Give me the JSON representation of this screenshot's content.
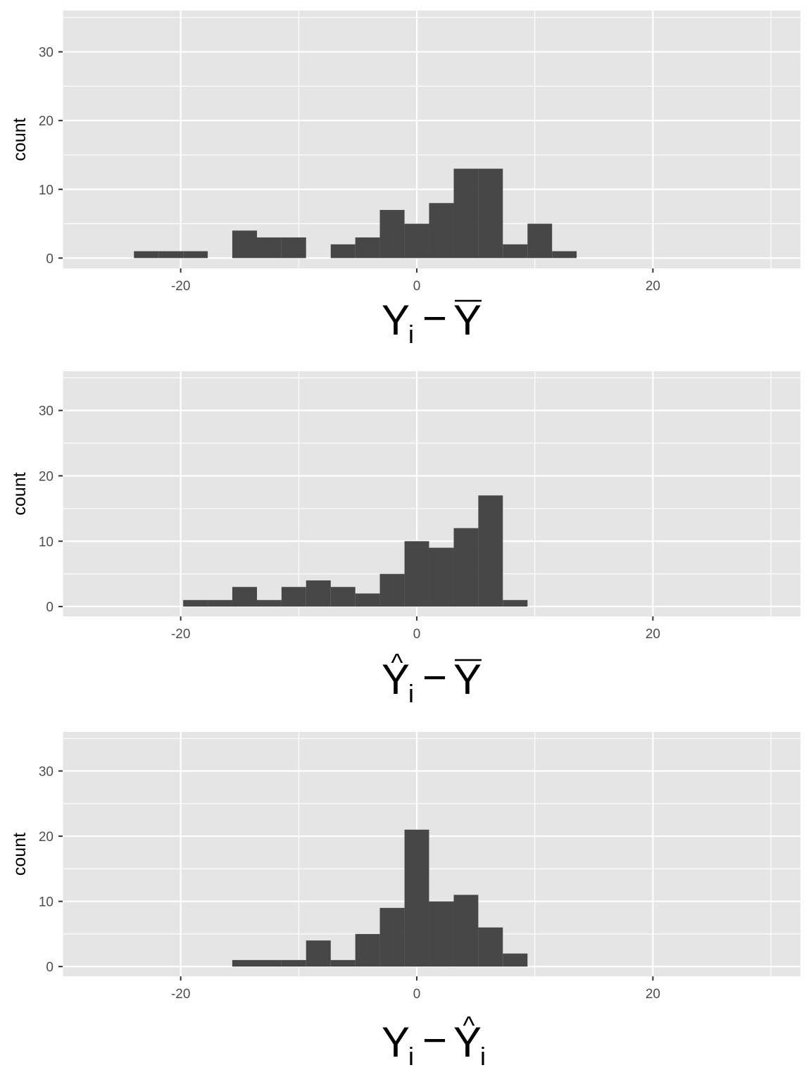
{
  "colors": {
    "panel_background": "#e5e5e5",
    "grid_major": "#ffffff",
    "bar_fill": "#474747",
    "tick_text": "#4d4d4d"
  },
  "chart_data": [
    {
      "type": "bar",
      "ylabel": "count",
      "xlabel": {
        "main": "Y",
        "sub": "i",
        "minus": "−",
        "rhs": "Y",
        "rhs_sub": "",
        "lhs_hat": false,
        "rhs_hat": false,
        "rhs_bar": true
      },
      "xlim": [
        -30,
        32.5
      ],
      "ylim": [
        -1.5,
        36
      ],
      "x_ticks": [
        -20,
        0,
        20
      ],
      "y_ticks": [
        0,
        10,
        20,
        30
      ],
      "grid": true,
      "bin_width": 2.083,
      "bins": [
        {
          "x0": -23.96,
          "x1": -21.88,
          "count": 1
        },
        {
          "x0": -21.88,
          "x1": -19.79,
          "count": 1
        },
        {
          "x0": -19.79,
          "x1": -17.71,
          "count": 1
        },
        {
          "x0": -15.63,
          "x1": -13.54,
          "count": 4
        },
        {
          "x0": -13.54,
          "x1": -11.46,
          "count": 3
        },
        {
          "x0": -11.46,
          "x1": -9.38,
          "count": 3
        },
        {
          "x0": -7.29,
          "x1": -5.21,
          "count": 2
        },
        {
          "x0": -5.21,
          "x1": -3.13,
          "count": 3
        },
        {
          "x0": -3.13,
          "x1": -1.04,
          "count": 7
        },
        {
          "x0": -1.04,
          "x1": 1.04,
          "count": 5
        },
        {
          "x0": 1.04,
          "x1": 3.13,
          "count": 8
        },
        {
          "x0": 3.13,
          "x1": 5.21,
          "count": 13
        },
        {
          "x0": 5.21,
          "x1": 7.29,
          "count": 13
        },
        {
          "x0": 7.29,
          "x1": 9.38,
          "count": 2
        },
        {
          "x0": 9.38,
          "x1": 11.46,
          "count": 5
        },
        {
          "x0": 11.46,
          "x1": 13.54,
          "count": 1
        }
      ]
    },
    {
      "type": "bar",
      "ylabel": "count",
      "xlabel": {
        "main": "Y",
        "sub": "i",
        "minus": "−",
        "rhs": "Y",
        "rhs_sub": "",
        "lhs_hat": true,
        "rhs_hat": false,
        "rhs_bar": true
      },
      "xlim": [
        -30,
        32.5
      ],
      "ylim": [
        -1.5,
        36
      ],
      "x_ticks": [
        -20,
        0,
        20
      ],
      "y_ticks": [
        0,
        10,
        20,
        30
      ],
      "grid": true,
      "bin_width": 2.083,
      "bins": [
        {
          "x0": -19.79,
          "x1": -17.71,
          "count": 1
        },
        {
          "x0": -17.71,
          "x1": -15.63,
          "count": 1
        },
        {
          "x0": -15.63,
          "x1": -13.54,
          "count": 3
        },
        {
          "x0": -13.54,
          "x1": -11.46,
          "count": 1
        },
        {
          "x0": -11.46,
          "x1": -9.38,
          "count": 3
        },
        {
          "x0": -9.38,
          "x1": -7.29,
          "count": 4
        },
        {
          "x0": -7.29,
          "x1": -5.21,
          "count": 3
        },
        {
          "x0": -5.21,
          "x1": -3.13,
          "count": 2
        },
        {
          "x0": -3.13,
          "x1": -1.04,
          "count": 5
        },
        {
          "x0": -1.04,
          "x1": 1.04,
          "count": 10
        },
        {
          "x0": 1.04,
          "x1": 3.13,
          "count": 9
        },
        {
          "x0": 3.13,
          "x1": 5.21,
          "count": 12
        },
        {
          "x0": 5.21,
          "x1": 7.29,
          "count": 17
        },
        {
          "x0": 7.29,
          "x1": 9.38,
          "count": 1
        }
      ]
    },
    {
      "type": "bar",
      "ylabel": "count",
      "xlabel": {
        "main": "Y",
        "sub": "i",
        "minus": "−",
        "rhs": "Y",
        "rhs_sub": "i",
        "lhs_hat": false,
        "rhs_hat": true,
        "rhs_bar": false
      },
      "xlim": [
        -30,
        32.5
      ],
      "ylim": [
        -1.5,
        36
      ],
      "x_ticks": [
        -20,
        0,
        20
      ],
      "y_ticks": [
        0,
        10,
        20,
        30
      ],
      "grid": true,
      "bin_width": 2.083,
      "bins": [
        {
          "x0": -15.63,
          "x1": -13.54,
          "count": 1
        },
        {
          "x0": -13.54,
          "x1": -11.46,
          "count": 1
        },
        {
          "x0": -11.46,
          "x1": -9.38,
          "count": 1
        },
        {
          "x0": -9.38,
          "x1": -7.29,
          "count": 4
        },
        {
          "x0": -7.29,
          "x1": -5.21,
          "count": 1
        },
        {
          "x0": -5.21,
          "x1": -3.13,
          "count": 5
        },
        {
          "x0": -3.13,
          "x1": -1.04,
          "count": 9
        },
        {
          "x0": -1.04,
          "x1": 1.04,
          "count": 21
        },
        {
          "x0": 1.04,
          "x1": 3.13,
          "count": 10
        },
        {
          "x0": 3.13,
          "x1": 5.21,
          "count": 11
        },
        {
          "x0": 5.21,
          "x1": 7.29,
          "count": 6
        },
        {
          "x0": 7.29,
          "x1": 9.38,
          "count": 2
        }
      ]
    }
  ]
}
